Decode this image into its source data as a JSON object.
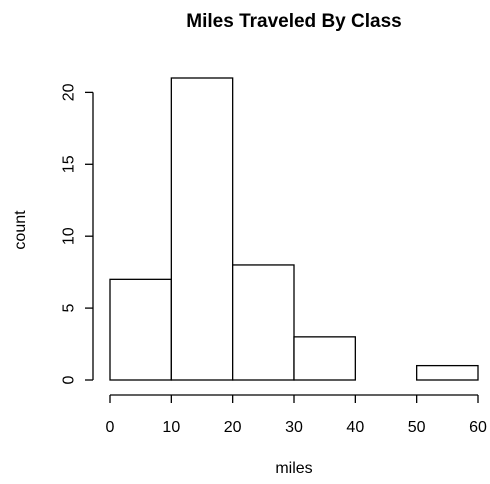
{
  "chart_data": {
    "type": "bar",
    "subtype": "histogram",
    "title": "Miles Traveled By Class",
    "xlabel": "miles",
    "ylabel": "count",
    "bins": [
      {
        "from": 0,
        "to": 10,
        "count": 7
      },
      {
        "from": 10,
        "to": 20,
        "count": 21
      },
      {
        "from": 20,
        "to": 30,
        "count": 8
      },
      {
        "from": 30,
        "to": 40,
        "count": 3
      },
      {
        "from": 40,
        "to": 50,
        "count": 0
      },
      {
        "from": 50,
        "to": 60,
        "count": 1
      }
    ],
    "xlim": [
      0,
      60
    ],
    "ylim": [
      0,
      21
    ],
    "xticks": [
      "0",
      "10",
      "20",
      "30",
      "40",
      "50",
      "60"
    ],
    "yticks": [
      "0",
      "5",
      "10",
      "15",
      "20"
    ],
    "grid": false,
    "legend": "none",
    "colors": {
      "bar_fill": "#ffffff",
      "bar_stroke": "#000000"
    }
  }
}
